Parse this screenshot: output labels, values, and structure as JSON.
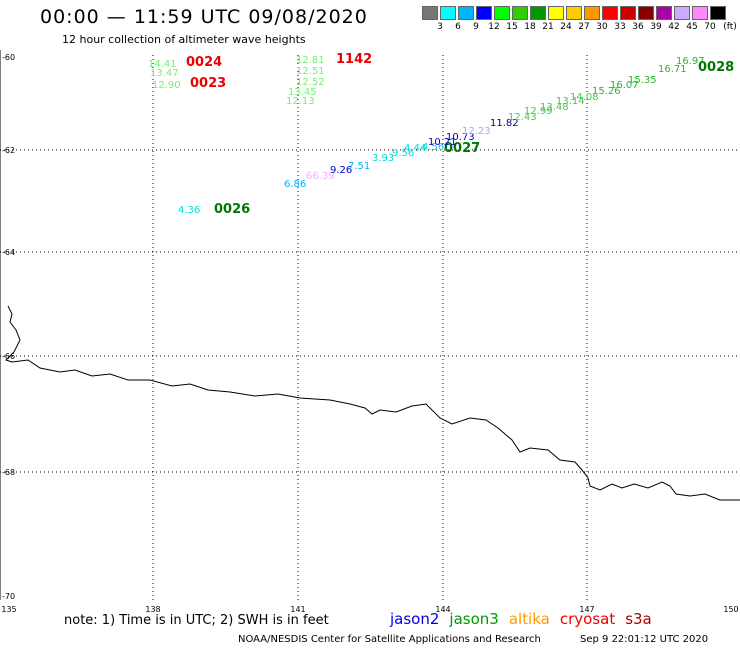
{
  "header": {
    "title": "00:00 — 11:59 UTC 09/08/2020",
    "subtitle": "12 hour collection of altimeter wave heights"
  },
  "colorbar": {
    "labels": [
      "3",
      "6",
      "9",
      "12",
      "15",
      "18",
      "21",
      "24",
      "27",
      "30",
      "33",
      "36",
      "39",
      "42",
      "45",
      "70"
    ],
    "unit": "(ft)",
    "colors": [
      "#777777",
      "#00ffff",
      "#00b4ff",
      "#0000ff",
      "#00ff00",
      "#33cc00",
      "#009900",
      "#ffff00",
      "#ffcc00",
      "#ff9900",
      "#ff0000",
      "#cc0000",
      "#880000",
      "#aa00aa",
      "#ccaaff",
      "#ff88ff",
      "#000000"
    ]
  },
  "axes": {
    "lat_labels": [
      "-60",
      "-62",
      "-64",
      "-66",
      "-68",
      "-70"
    ],
    "lon_labels": [
      "135",
      "138",
      "141",
      "144",
      "147",
      "150"
    ]
  },
  "measurements": [
    {
      "t": "14.41",
      "c": "#77ee77"
    },
    {
      "t": "13.47",
      "c": "#77ee77"
    },
    {
      "t": "12.90",
      "c": "#77ee77"
    },
    {
      "t": "0024",
      "c": "#ee0000"
    },
    {
      "t": "0023",
      "c": "#ee0000"
    },
    {
      "t": "12.81",
      "c": "#77ee77"
    },
    {
      "t": "12.51",
      "c": "#77ee77"
    },
    {
      "t": "12.52",
      "c": "#77ee77"
    },
    {
      "t": "13.45",
      "c": "#77ee77"
    },
    {
      "t": "12.13",
      "c": "#77ee77"
    },
    {
      "t": "1142",
      "c": "#ee0000"
    },
    {
      "t": "4.36",
      "c": "#00dddd"
    },
    {
      "t": "0026",
      "c": "#007700"
    },
    {
      "t": "6.86",
      "c": "#00b4ff"
    },
    {
      "t": "66.39",
      "c": "#ffaaff"
    },
    {
      "t": "9.26",
      "c": "#0000cc"
    },
    {
      "t": "7.51",
      "c": "#00b4ff"
    },
    {
      "t": "3.93",
      "c": "#00dddd"
    },
    {
      "t": "9.56",
      "c": "#00dddd"
    },
    {
      "t": "4.44",
      "c": "#00dddd"
    },
    {
      "t": "4.56",
      "c": "#00dddd"
    },
    {
      "t": "0027",
      "c": "#007700"
    },
    {
      "t": "10.21",
      "c": "#0000cc"
    },
    {
      "t": "10.73",
      "c": "#0000cc"
    },
    {
      "t": "12.23",
      "c": "#aaaaee"
    },
    {
      "t": "11.82",
      "c": "#000088"
    },
    {
      "t": "12.43",
      "c": "#44cc44"
    },
    {
      "t": "12.99",
      "c": "#44cc44"
    },
    {
      "t": "13.48",
      "c": "#44cc44"
    },
    {
      "t": "13.14",
      "c": "#44cc44"
    },
    {
      "t": "14.08",
      "c": "#44cc44"
    },
    {
      "t": "15.26",
      "c": "#22bb22"
    },
    {
      "t": "16.07",
      "c": "#22bb22"
    },
    {
      "t": "15.35",
      "c": "#22bb22"
    },
    {
      "t": "16.71",
      "c": "#22bb22"
    },
    {
      "t": "16.97",
      "c": "#22bb22"
    },
    {
      "t": "0028",
      "c": "#007700"
    }
  ],
  "footer": {
    "note": "note: 1) Time is in UTC; 2) SWH is in feet",
    "satellites": [
      {
        "name": "jason2",
        "color": "#0000ee"
      },
      {
        "name": "jason3",
        "color": "#009900"
      },
      {
        "name": "altika",
        "color": "#ff9900"
      },
      {
        "name": "cryosat",
        "color": "#ee0000"
      },
      {
        "name": "s3a",
        "color": "#aa0000"
      }
    ],
    "credit": "NOAA/NESDIS Center for Satellite Applications and Research",
    "credit_date": "Sep  9 22:01:12 UTC 2020"
  }
}
